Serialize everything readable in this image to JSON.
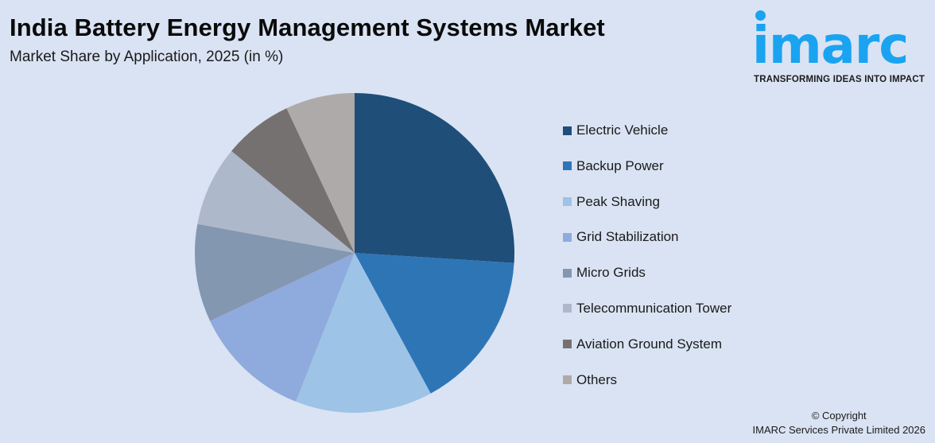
{
  "header": {
    "title": "India Battery Energy Management Systems Market",
    "subtitle": "Market Share by Application, 2025 (in %)"
  },
  "logo": {
    "word": "imarc",
    "tagline": "TRANSFORMING IDEAS INTO IMPACT",
    "color": "#1aa3f0"
  },
  "footer": {
    "line1": "© Copyright",
    "line2": "IMARC Services Private Limited 2026"
  },
  "chart_data": {
    "type": "pie",
    "title": "India Battery Energy Management Systems Market",
    "subtitle": "Market Share by Application, 2025 (in %)",
    "start_angle_deg": 0,
    "direction": "clockwise",
    "legend_position": "right",
    "categories": [
      "Electric Vehicle",
      "Backup Power",
      "Peak Shaving",
      "Grid Stabilization",
      "Micro Grids",
      "Telecommunication Tower",
      "Aviation Ground System",
      "Others"
    ],
    "values": [
      26.0,
      16.1,
      13.9,
      12.0,
      9.9,
      8.1,
      7.0,
      7.0
    ],
    "colors": [
      "#1f4e79",
      "#2e75b6",
      "#9dc3e6",
      "#8faadc",
      "#8497b0",
      "#adb9ca",
      "#767171",
      "#aeaaaa"
    ]
  },
  "legend": {
    "items": [
      {
        "label": "Electric Vehicle",
        "color": "#1f4e79"
      },
      {
        "label": "Backup Power",
        "color": "#2e75b6"
      },
      {
        "label": "Peak Shaving",
        "color": "#9dc3e6"
      },
      {
        "label": "Grid Stabilization",
        "color": "#8faadc"
      },
      {
        "label": "Micro Grids",
        "color": "#8497b0"
      },
      {
        "label": "Telecommunication Tower",
        "color": "#adb9ca"
      },
      {
        "label": "Aviation Ground System",
        "color": "#767171"
      },
      {
        "label": "Others",
        "color": "#aeaaaa"
      }
    ]
  }
}
